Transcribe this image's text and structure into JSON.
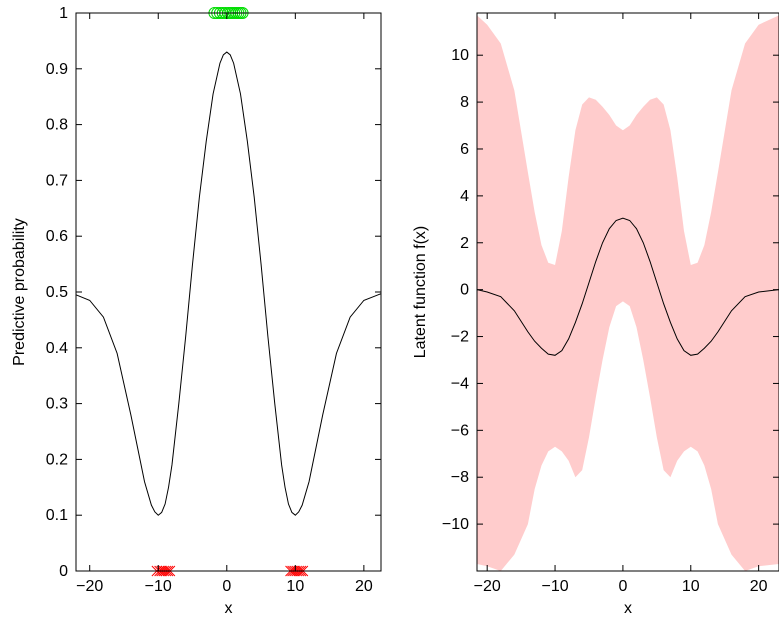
{
  "chart_data": [
    {
      "type": "line",
      "title": "",
      "xlabel": "x",
      "ylabel": "Predictive probability",
      "xlim": [
        -22,
        22.5
      ],
      "ylim": [
        0,
        1
      ],
      "xticks": [
        -20,
        -10,
        0,
        10,
        20
      ],
      "xtick_labels": [
        "−20",
        "−10",
        "0",
        "10",
        "20"
      ],
      "yticks": [
        0,
        0.1,
        0.2,
        0.3,
        0.4,
        0.5,
        0.6,
        0.7,
        0.8,
        0.9,
        1
      ],
      "ytick_labels": [
        "0",
        "0.1",
        "0.2",
        "0.3",
        "0.4",
        "0.5",
        "0.6",
        "0.7",
        "0.8",
        "0.9",
        "1"
      ],
      "grid": false,
      "colors": {
        "line": "#000000",
        "class_pos": "#00dd00",
        "class_neg": "#ff0000"
      },
      "series": [
        {
          "x": [
            -22,
            -20,
            -18,
            -16,
            -14,
            -13,
            -12,
            -11,
            -10.5,
            -10,
            -9.5,
            -9,
            -8.5,
            -8,
            -7,
            -6,
            -5,
            -4,
            -3,
            -2,
            -1,
            -0.5,
            0,
            0.5,
            1,
            2,
            3,
            4,
            5,
            6,
            7,
            8,
            8.5,
            9,
            9.5,
            10,
            10.5,
            11,
            12,
            13,
            14,
            16,
            18,
            20,
            22.5
          ],
          "y": [
            0.495,
            0.485,
            0.455,
            0.39,
            0.28,
            0.22,
            0.16,
            0.118,
            0.106,
            0.1,
            0.105,
            0.12,
            0.15,
            0.19,
            0.3,
            0.42,
            0.55,
            0.67,
            0.77,
            0.855,
            0.91,
            0.925,
            0.93,
            0.925,
            0.91,
            0.855,
            0.77,
            0.67,
            0.55,
            0.42,
            0.3,
            0.19,
            0.15,
            0.12,
            0.105,
            0.1,
            0.106,
            0.118,
            0.16,
            0.22,
            0.28,
            0.39,
            0.455,
            0.485,
            0.497
          ]
        }
      ],
      "class_points": {
        "positive": {
          "marker": "o",
          "y": 1,
          "x": [
            -1.8,
            -1.4,
            -1.0,
            -0.6,
            -0.2,
            0.2,
            0.5,
            0.8,
            1.1,
            1.4,
            1.7,
            2.0,
            2.3
          ]
        },
        "negative": {
          "marker": "x",
          "y": 0,
          "x": [
            -10.2,
            -9.8,
            -9.5,
            -9.2,
            -8.9,
            -8.6,
            -8.3,
            9.3,
            9.6,
            9.9,
            10.2,
            10.5,
            10.8,
            11.1
          ]
        }
      }
    },
    {
      "type": "area",
      "title": "",
      "xlabel": "x",
      "ylabel": "Latent function f(x)",
      "xlim": [
        -21.5,
        23
      ],
      "ylim": [
        -12,
        11.8
      ],
      "xticks": [
        -20,
        -10,
        0,
        10,
        20
      ],
      "xtick_labels": [
        "−20",
        "−10",
        "0",
        "10",
        "20"
      ],
      "yticks": [
        -10,
        -8,
        -6,
        -4,
        -2,
        0,
        2,
        4,
        6,
        8,
        10
      ],
      "ytick_labels": [
        "−10",
        "−8",
        "−6",
        "−4",
        "−2",
        "0",
        "2",
        "4",
        "6",
        "8",
        "10"
      ],
      "grid": false,
      "colors": {
        "line": "#000000",
        "band": "#ffcccc"
      },
      "x": [
        -21.5,
        -20,
        -18,
        -16,
        -14,
        -13,
        -12,
        -11,
        -10,
        -9,
        -8,
        -7,
        -6,
        -5,
        -4,
        -3,
        -2,
        -1,
        0,
        1,
        2,
        3,
        4,
        5,
        6,
        7,
        8,
        9,
        10,
        11,
        12,
        13,
        14,
        16,
        18,
        20,
        23
      ],
      "mean": [
        0,
        -0.1,
        -0.3,
        -0.9,
        -1.8,
        -2.2,
        -2.5,
        -2.75,
        -2.8,
        -2.6,
        -2.1,
        -1.4,
        -0.6,
        0.3,
        1.2,
        2.0,
        2.6,
        2.95,
        3.05,
        2.95,
        2.6,
        2.0,
        1.2,
        0.3,
        -0.6,
        -1.4,
        -2.1,
        -2.6,
        -2.8,
        -2.75,
        -2.5,
        -2.2,
        -1.8,
        -0.9,
        -0.3,
        -0.1,
        0
      ],
      "upper": [
        11.7,
        11.3,
        10.5,
        8.5,
        5.0,
        3.3,
        1.9,
        1.15,
        1.05,
        2.5,
        4.8,
        6.8,
        7.9,
        8.2,
        8.1,
        7.8,
        7.45,
        7.0,
        6.8,
        7.0,
        7.45,
        7.8,
        8.1,
        8.2,
        7.9,
        6.8,
        4.8,
        2.5,
        1.05,
        1.15,
        1.9,
        3.3,
        5.0,
        8.5,
        10.5,
        11.3,
        11.7
      ],
      "lower": [
        -11.7,
        -11.8,
        -12,
        -11.3,
        -10.0,
        -8.5,
        -7.5,
        -6.9,
        -6.7,
        -6.9,
        -7.3,
        -8.0,
        -7.7,
        -6.3,
        -4.6,
        -3.0,
        -1.6,
        -0.7,
        -0.5,
        -0.7,
        -1.6,
        -3.0,
        -4.6,
        -6.3,
        -7.7,
        -8.0,
        -7.3,
        -6.9,
        -6.7,
        -6.9,
        -7.5,
        -8.5,
        -10.0,
        -11.3,
        -12,
        -11.8,
        -11.7
      ]
    }
  ]
}
